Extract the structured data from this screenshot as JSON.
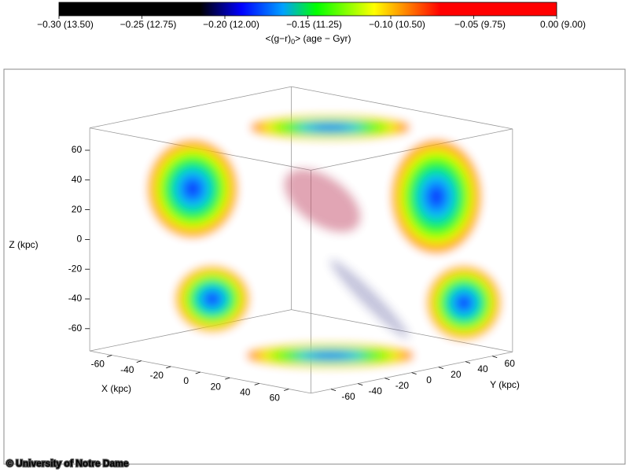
{
  "chart_data": {
    "type": "scatter3d",
    "colorbar": {
      "label_parts": [
        "<(g−r)",
        "0",
        "> (age − Gyr)"
      ],
      "lim": [
        -0.3,
        0.0
      ],
      "ticks": [
        {
          "value": -0.3,
          "label": "−0.30 (13.50)"
        },
        {
          "value": -0.25,
          "label": "−0.25 (12.75)"
        },
        {
          "value": -0.2,
          "label": "−0.20 (12.00)"
        },
        {
          "value": -0.15,
          "label": "−0.15 (11.25)"
        },
        {
          "value": -0.1,
          "label": "−0.10 (10.50)"
        },
        {
          "value": -0.05,
          "label": "−0.05 (9.75)"
        },
        {
          "value": 0.0,
          "label": "0.00 (9.00)"
        }
      ],
      "colormap": [
        {
          "value": -0.3,
          "color": "#000000"
        },
        {
          "value": -0.215,
          "color": "#000000"
        },
        {
          "value": -0.19,
          "color": "#0000ff"
        },
        {
          "value": -0.165,
          "color": "#00a0ff"
        },
        {
          "value": -0.145,
          "color": "#00ff00"
        },
        {
          "value": -0.11,
          "color": "#ffff00"
        },
        {
          "value": -0.09,
          "color": "#ff8000"
        },
        {
          "value": -0.07,
          "color": "#ff0000"
        },
        {
          "value": 0.0,
          "color": "#ff0000"
        }
      ]
    },
    "xlabel": "X (kpc)",
    "ylabel": "Y (kpc)",
    "zlabel": "Z (kpc)",
    "xlim": [
      -75,
      75
    ],
    "ylim": [
      -75,
      75
    ],
    "zlim": [
      -75,
      75
    ],
    "xticks": [
      -60,
      -40,
      -20,
      0,
      20,
      40,
      60
    ],
    "yticks": [
      -60,
      -40,
      -20,
      0,
      20,
      40,
      60
    ],
    "zticks": [
      -60,
      -40,
      -20,
      0,
      20,
      40,
      60
    ]
  },
  "credit": "© University of Notre Dame"
}
